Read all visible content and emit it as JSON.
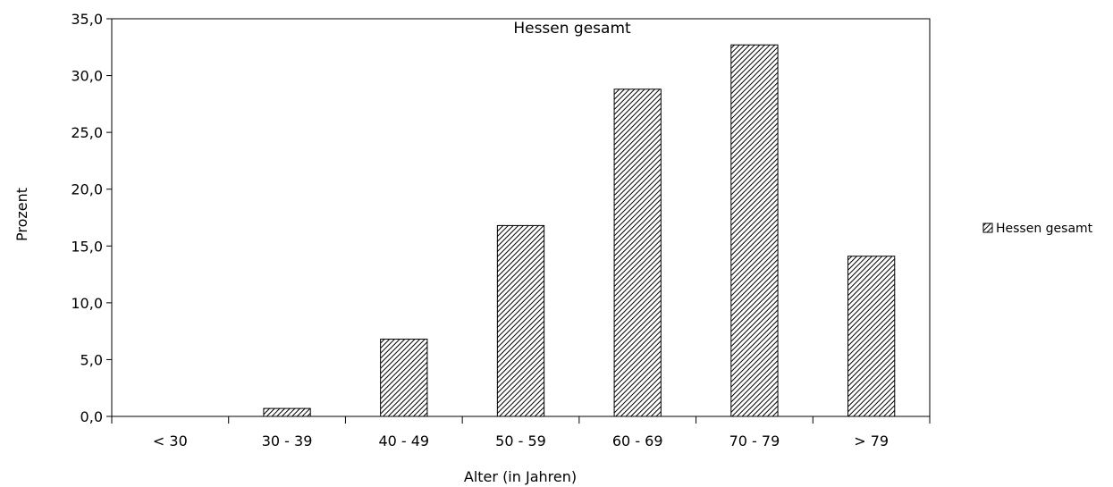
{
  "chart_data": {
    "type": "bar",
    "title": "Hessen gesamt",
    "xlabel": "Alter (in Jahren)",
    "ylabel": "Prozent",
    "categories": [
      "< 30",
      "30 - 39",
      "40 - 49",
      "50 - 59",
      "60 - 69",
      "70 - 79",
      "> 79"
    ],
    "series": [
      {
        "name": "Hessen gesamt",
        "values": [
          0.0,
          0.7,
          6.8,
          16.8,
          28.8,
          32.7,
          14.1
        ]
      }
    ],
    "ylim": [
      0,
      35
    ],
    "yticks": [
      "0,0",
      "5,0",
      "10,0",
      "15,0",
      "20,0",
      "25,0",
      "30,0",
      "35,0"
    ],
    "ytick_values": [
      0,
      5,
      10,
      15,
      20,
      25,
      30,
      35
    ],
    "grid": false,
    "legend_position": "right",
    "bar_fill": "diagonal-hatch",
    "colors": {
      "bar_stroke": "#000000",
      "hatch": "#000000",
      "background": "#ffffff"
    }
  }
}
